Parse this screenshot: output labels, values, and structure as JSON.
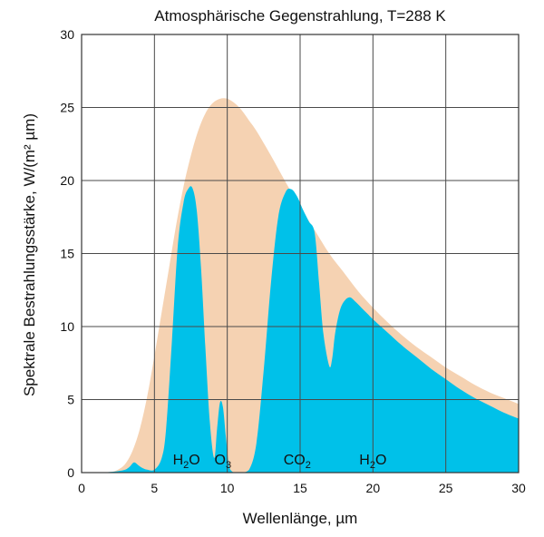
{
  "chart_data": {
    "type": "area",
    "title": "Atmosphärische Gegenstrahlung, T=288 K",
    "xlabel": "Wellenlänge, µm",
    "ylabel": "Spektrale Bestrahlungsstärke, W/(m² µm)",
    "xlim": [
      0,
      30
    ],
    "ylim": [
      0,
      30
    ],
    "x_ticks": [
      0,
      5,
      10,
      15,
      20,
      25,
      30
    ],
    "y_ticks": [
      0,
      5,
      10,
      15,
      20,
      25,
      30
    ],
    "grid": true,
    "colors": {
      "blackbody": "#f5d2b2",
      "emission": "#00c1e9"
    },
    "series": [
      {
        "x": [
          0,
          1,
          2,
          2.5,
          3,
          3.5,
          4,
          4.5,
          5,
          5.5,
          6,
          6.5,
          7,
          7.5,
          8,
          8.5,
          9,
          9.5,
          10,
          10.5,
          11,
          11.5,
          12,
          13,
          14,
          15,
          16,
          17,
          18,
          19,
          20,
          21,
          22,
          23,
          24,
          25,
          26,
          27,
          28,
          29,
          30
        ],
        "values": [
          0,
          0,
          0.05,
          0.2,
          0.6,
          1.5,
          3.0,
          5.2,
          8.0,
          11.0,
          14.0,
          17.0,
          19.6,
          21.7,
          23.4,
          24.6,
          25.3,
          25.6,
          25.6,
          25.3,
          24.8,
          24.1,
          23.4,
          21.7,
          19.9,
          18.2,
          16.6,
          15.0,
          13.7,
          12.4,
          11.3,
          10.3,
          9.4,
          8.6,
          7.9,
          7.2,
          6.6,
          6.0,
          5.5,
          5.1,
          4.7
        ]
      },
      {
        "x": [
          0,
          1,
          2,
          2.5,
          3,
          3.3,
          3.6,
          3.9,
          4.2,
          4.5,
          5,
          5.5,
          5.8,
          6.2,
          6.6,
          7,
          7.3,
          7.6,
          7.9,
          8.2,
          8.5,
          8.8,
          9.1,
          9.3,
          9.5,
          9.7,
          9.9,
          10.1,
          10.3,
          10.6,
          11,
          11.5,
          12,
          12.5,
          13,
          13.5,
          14,
          14.4,
          14.8,
          15.2,
          15.6,
          16,
          16.3,
          16.6,
          17,
          17.2,
          17.4,
          17.7,
          18,
          18.4,
          18.8,
          19.2,
          19.6,
          20,
          21,
          22,
          23,
          24,
          25,
          26,
          27,
          28,
          29,
          30
        ],
        "values": [
          0,
          0,
          0.05,
          0.1,
          0.2,
          0.4,
          0.7,
          0.5,
          0.3,
          0.2,
          0.2,
          1.0,
          3.0,
          9.0,
          15.5,
          18.5,
          19.4,
          19.5,
          18.0,
          14.0,
          8.5,
          3.5,
          1.0,
          3.0,
          4.8,
          4.5,
          2.5,
          0.6,
          0.1,
          0,
          0,
          0.2,
          2.0,
          7.0,
          13.0,
          17.5,
          19.2,
          19.4,
          18.9,
          18.0,
          17.2,
          16.4,
          13.0,
          9.5,
          7.3,
          7.8,
          9.5,
          11.0,
          11.7,
          12.0,
          11.7,
          11.3,
          10.9,
          10.5,
          9.6,
          8.7,
          7.9,
          7.1,
          6.4,
          5.7,
          5.1,
          4.6,
          4.1,
          3.7
        ]
      }
    ],
    "annotations": [
      {
        "base": "H",
        "sub": "2",
        "after": "O",
        "x": 7.2,
        "y": 0.3
      },
      {
        "base": "O",
        "sub": "3",
        "after": "",
        "x": 9.7,
        "y": 0.3
      },
      {
        "base": "CO",
        "sub": "2",
        "after": "",
        "x": 14.8,
        "y": 0.3
      },
      {
        "base": "H",
        "sub": "2",
        "after": "O",
        "x": 20.0,
        "y": 0.3
      }
    ]
  }
}
